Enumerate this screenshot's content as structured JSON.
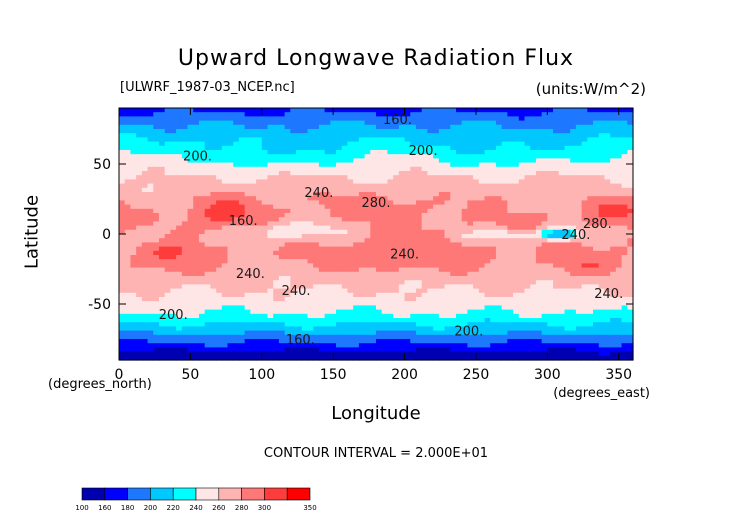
{
  "chart_data": {
    "type": "heatmap",
    "title": "Upward Longwave Radiation Flux",
    "subtitle_left": "[ULWRF_1987-03_NCEP.nc]",
    "subtitle_right": "(units:W/m^2)",
    "xlabel": "Longitude",
    "ylabel": "Latitude",
    "x_unit_label": "(degrees_north)",
    "x_unit_label_right": "(degrees_east)",
    "xlim": [
      0,
      360
    ],
    "ylim": [
      -90,
      90
    ],
    "x_ticks": [
      "0",
      "50",
      "100",
      "150",
      "200",
      "250",
      "300",
      "350"
    ],
    "x_tick_values": [
      0,
      50,
      100,
      150,
      200,
      250,
      300,
      350
    ],
    "y_ticks": [
      "50",
      "0",
      "-50"
    ],
    "y_tick_values": [
      50,
      0,
      -50
    ],
    "contour_interval_text": "CONTOUR INTERVAL = 2.000E+01",
    "colorbar_labels": [
      "100",
      "160",
      "180",
      "200",
      "220",
      "240",
      "260",
      "280",
      "300",
      "350"
    ],
    "colorbar_levels": [
      100,
      160,
      180,
      200,
      220,
      240,
      260,
      280,
      300,
      350
    ],
    "colorbar_colors": [
      "#0000b0",
      "#0000ff",
      "#1e78ff",
      "#00c8ff",
      "#00ffff",
      "#ffe6e6",
      "#ffb4b4",
      "#ff7878",
      "#ff3c3c",
      "#ff0000"
    ],
    "contour_labels": [
      {
        "text": "160.",
        "lon": 195,
        "lat": 82
      },
      {
        "text": "200.",
        "lon": 55,
        "lat": 56
      },
      {
        "text": "200.",
        "lon": 213,
        "lat": 60
      },
      {
        "text": "240.",
        "lon": 140,
        "lat": 30
      },
      {
        "text": "280.",
        "lon": 180,
        "lat": 23
      },
      {
        "text": "160.",
        "lon": 87,
        "lat": 10
      },
      {
        "text": "280.",
        "lon": 335,
        "lat": 8
      },
      {
        "text": "240.",
        "lon": 320,
        "lat": 0
      },
      {
        "text": "240.",
        "lon": 200,
        "lat": -14
      },
      {
        "text": "240.",
        "lon": 92,
        "lat": -28
      },
      {
        "text": "240.",
        "lon": 124,
        "lat": -40
      },
      {
        "text": "240.",
        "lon": 343,
        "lat": -42
      },
      {
        "text": "200.",
        "lon": 38,
        "lat": -57
      },
      {
        "text": "200.",
        "lon": 245,
        "lat": -69
      },
      {
        "text": "160.",
        "lon": 127,
        "lat": -75
      }
    ]
  }
}
